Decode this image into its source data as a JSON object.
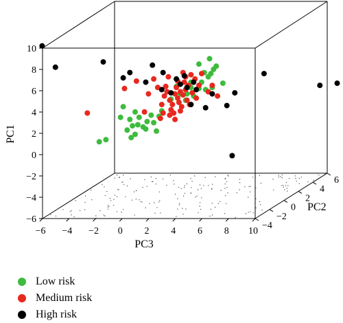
{
  "chart_data": {
    "type": "scatter",
    "dims": 3,
    "axes": {
      "pc1": {
        "label": "PC1",
        "range": [
          -6,
          10
        ],
        "ticks": [
          -6,
          -4,
          -2,
          0,
          2,
          4,
          6,
          8,
          10
        ]
      },
      "pc2": {
        "label": "PC2",
        "range": [
          -4,
          6
        ],
        "ticks": [
          -4,
          -2,
          0,
          2,
          4,
          6
        ]
      },
      "pc3": {
        "label": "PC3",
        "range": [
          -6,
          10
        ],
        "ticks": [
          -6,
          -4,
          -2,
          0,
          2,
          4,
          6,
          8,
          10
        ]
      }
    },
    "series": [
      {
        "name": "Low risk",
        "color": "#3dbb3d",
        "points": [
          [
            -3.9,
            0,
            -0.5
          ],
          [
            -3.4,
            0,
            -0.3
          ],
          [
            -1.5,
            0,
            -0.1
          ],
          [
            -1.2,
            0,
            0.2
          ],
          [
            -1.8,
            0,
            0.6
          ],
          [
            -1.4,
            0,
            1.0
          ],
          [
            -1.0,
            0,
            1.1
          ],
          [
            -1.6,
            0,
            1.6
          ],
          [
            -0.9,
            0,
            1.8
          ],
          [
            -0.6,
            0,
            0.9
          ],
          [
            -0.3,
            0,
            1.4
          ],
          [
            0.2,
            0,
            1.3
          ],
          [
            0.6,
            0,
            1.9
          ],
          [
            0.8,
            0,
            2.4
          ],
          [
            0.0,
            0,
            2.0
          ],
          [
            -1.2,
            0,
            2.3
          ],
          [
            -2.3,
            0,
            1.8
          ],
          [
            -2.1,
            0,
            2.8
          ],
          [
            -0.4,
            0,
            0.7
          ],
          [
            0.4,
            0,
            0.5
          ],
          [
            1.9,
            0,
            4.7
          ],
          [
            3.0,
            0,
            5.1
          ],
          [
            4.3,
            0,
            5.6
          ],
          [
            4.5,
            0,
            5.9
          ],
          [
            4.0,
            0,
            6.0
          ],
          [
            4.7,
            0,
            6.3
          ],
          [
            4.9,
            0,
            6.6
          ],
          [
            3.6,
            0,
            4.5
          ],
          [
            2.7,
            0,
            4.0
          ],
          [
            3.2,
            0,
            3.8
          ],
          [
            4.1,
            0,
            4.4
          ],
          [
            5.4,
            0,
            5.0
          ],
          [
            3.0,
            0,
            4.6
          ],
          [
            2.2,
            0,
            4.0
          ],
          [
            1.5,
            0,
            3.5
          ],
          [
            4.4,
            0,
            7.3
          ],
          [
            3.6,
            0,
            6.8
          ],
          [
            2.6,
            0,
            3.4
          ],
          [
            3.8,
            0,
            5.1
          ],
          [
            4.6,
            0,
            4.6
          ]
        ]
      },
      {
        "name": "Medium risk",
        "color": "#e8281e",
        "points": [
          [
            2.2,
            0,
            4.2
          ],
          [
            1.8,
            0,
            4.0
          ],
          [
            2.6,
            0,
            4.4
          ],
          [
            2.0,
            0,
            3.6
          ],
          [
            1.4,
            0,
            3.4
          ],
          [
            2.4,
            0,
            3.9
          ],
          [
            2.8,
            0,
            4.8
          ],
          [
            1.6,
            0,
            3.0
          ],
          [
            2.1,
            0,
            3.2
          ],
          [
            1.9,
            0,
            4.6
          ],
          [
            1.2,
            0,
            4.2
          ],
          [
            3.1,
            0,
            4.1
          ],
          [
            2.7,
            0,
            3.4
          ],
          [
            1.5,
            0,
            2.5
          ],
          [
            2.3,
            0,
            2.8
          ],
          [
            1.7,
            0,
            2.2
          ],
          [
            2.5,
            0,
            5.1
          ],
          [
            3.3,
            0,
            5.4
          ],
          [
            1.0,
            0,
            3.8
          ],
          [
            0.8,
            0,
            3.0
          ],
          [
            3.6,
            0,
            4.8
          ],
          [
            2.9,
            0,
            3.0
          ],
          [
            2.0,
            0,
            5.2
          ],
          [
            1.1,
            0,
            4.7
          ],
          [
            3.0,
            0,
            5.8
          ],
          [
            2.4,
            0,
            6.0
          ],
          [
            1.3,
            0,
            5.6
          ],
          [
            3.8,
            0,
            5.9
          ],
          [
            0.5,
            0,
            4.6
          ],
          [
            0.2,
            0,
            5.4
          ],
          [
            -0.2,
            0,
            4.0
          ],
          [
            4.3,
            0,
            4.2
          ],
          [
            4.6,
            0,
            4.8
          ],
          [
            1.4,
            0,
            2.0
          ],
          [
            0.7,
            0,
            1.7
          ],
          [
            -0.5,
            0,
            2.3
          ],
          [
            -4.8,
            0,
            2.2
          ],
          [
            -2.0,
            0,
            4.5
          ],
          [
            -1.1,
            0,
            5.2
          ],
          [
            5.0,
            0,
            3.8
          ],
          [
            3.4,
            0,
            3.6
          ],
          [
            2.2,
            0,
            2.4
          ],
          [
            1.8,
            0,
            1.6
          ],
          [
            0.9,
            0,
            2.2
          ],
          [
            2.6,
            0,
            5.6
          ]
        ]
      },
      {
        "name": "High risk",
        "color": "#000000",
        "points": [
          [
            -8.2,
            0,
            8.5
          ],
          [
            -7.2,
            0,
            6.5
          ],
          [
            -3.6,
            0,
            7.0
          ],
          [
            -2.1,
            0,
            5.5
          ],
          [
            -1.6,
            0,
            6.0
          ],
          [
            -0.4,
            0,
            5.1
          ],
          [
            0.1,
            0,
            6.7
          ],
          [
            0.9,
            0,
            6.0
          ],
          [
            1.9,
            0,
            5.4
          ],
          [
            2.2,
            0,
            4.9
          ],
          [
            2.7,
            0,
            4.6
          ],
          [
            3.4,
            0,
            4.4
          ],
          [
            3.0,
            0,
            3.0
          ],
          [
            4.1,
            0,
            2.7
          ],
          [
            4.6,
            0,
            4.0
          ],
          [
            2.5,
            0,
            5.7
          ],
          [
            3.2,
            0,
            5.1
          ],
          [
            6.3,
            0,
            4.1
          ],
          [
            5.7,
            0,
            2.9
          ],
          [
            8.5,
            0,
            5.9
          ],
          [
            12.7,
            0,
            4.8
          ],
          [
            14.0,
            0,
            5.0
          ],
          [
            6.1,
            0,
            -1.8
          ],
          [
            0.8,
            0,
            4.4
          ],
          [
            1.5,
            0,
            4.1
          ]
        ]
      }
    ],
    "legend": {
      "position": "bottom-left"
    }
  }
}
